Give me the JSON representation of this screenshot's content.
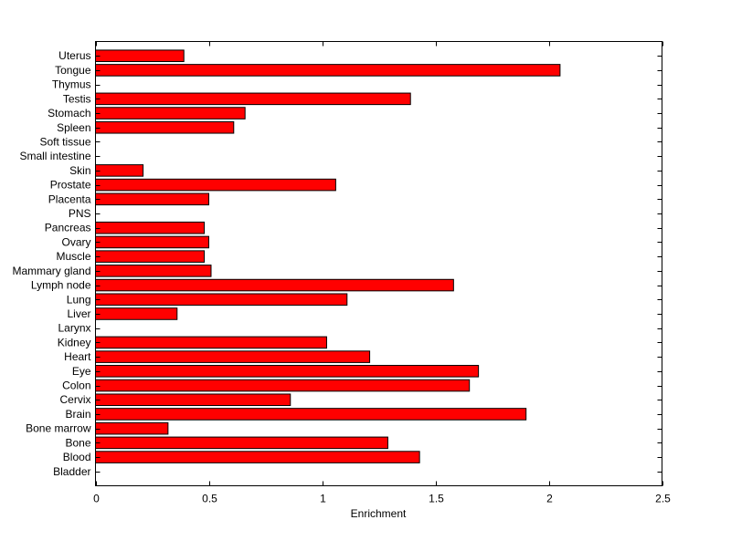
{
  "chart_data": {
    "type": "bar",
    "orientation": "horizontal",
    "title": "",
    "xlabel": "Enrichment",
    "ylabel": "",
    "xlim": [
      0,
      2.5
    ],
    "xticks": [
      0,
      0.5,
      1,
      1.5,
      2,
      2.5
    ],
    "xtick_labels": [
      "0",
      "0.5",
      "1",
      "1.5",
      "2",
      "2.5"
    ],
    "grid": false,
    "bar_color": "#ff0000",
    "edge_color": "#000000",
    "categories": [
      "Bladder",
      "Blood",
      "Bone",
      "Bone marrow",
      "Brain",
      "Cervix",
      "Colon",
      "Eye",
      "Heart",
      "Kidney",
      "Larynx",
      "Liver",
      "Lung",
      "Lymph node",
      "Mammary gland",
      "Muscle",
      "Ovary",
      "Pancreas",
      "PNS",
      "Placenta",
      "Prostate",
      "Skin",
      "Small intestine",
      "Soft tissue",
      "Spleen",
      "Stomach",
      "Testis",
      "Thymus",
      "Tongue",
      "Uterus"
    ],
    "values": [
      0,
      1.43,
      1.29,
      0.32,
      1.9,
      0.86,
      1.65,
      1.69,
      1.21,
      1.02,
      0,
      0.36,
      1.11,
      1.58,
      0.51,
      0.48,
      0.5,
      0.48,
      0,
      0.5,
      1.06,
      0.21,
      0,
      0,
      0.61,
      0.66,
      1.39,
      0,
      2.05,
      0.39
    ]
  }
}
